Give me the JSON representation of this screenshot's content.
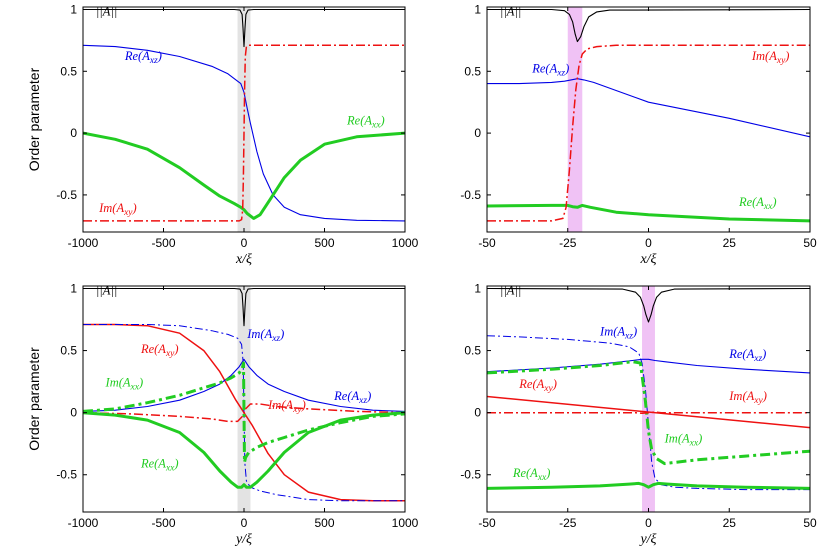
{
  "chart_data": [
    {
      "type": "line",
      "panel": "top-left",
      "ylabel": "Order parameter",
      "xlabel": "x/ξ",
      "xlim": [
        -1000,
        1000
      ],
      "ylim": [
        -0.8,
        1.02
      ],
      "xticks": [
        -1000,
        -500,
        0,
        500,
        1000
      ],
      "xtick_labels": [
        "-1000",
        "-500",
        "0",
        "500",
        "1000"
      ],
      "yticks": [
        1,
        0.5,
        0,
        -0.5
      ],
      "ytick_labels": [
        "1",
        "0.5",
        "0",
        "-0.5"
      ],
      "shade": {
        "from": -40,
        "to": 40,
        "color": "#e3e3e3"
      },
      "series": [
        {
          "name": "||A||",
          "color": "#000000",
          "width": 1.1,
          "dash": "",
          "x": [
            -1000,
            -60,
            -25,
            -12,
            -6,
            0,
            6,
            12,
            25,
            60,
            1000
          ],
          "y": [
            1,
            1,
            0.995,
            0.96,
            0.85,
            0.7,
            0.85,
            0.96,
            0.995,
            1,
            1
          ]
        },
        {
          "name": "Re(A_xz)",
          "color": "#0000e6",
          "width": 1.1,
          "dash": "",
          "x": [
            -1000,
            -800,
            -600,
            -400,
            -200,
            -100,
            -40,
            -20,
            0,
            20,
            40,
            80,
            120,
            180,
            250,
            350,
            500,
            700,
            1000
          ],
          "y": [
            0.71,
            0.7,
            0.67,
            0.62,
            0.54,
            0.48,
            0.42,
            0.4,
            0.33,
            0.2,
            0.08,
            -0.15,
            -0.33,
            -0.5,
            -0.6,
            -0.66,
            -0.69,
            -0.705,
            -0.71
          ]
        },
        {
          "name": "Re(A_xx)",
          "color": "#22cc22",
          "width": 3,
          "dash": "",
          "x": [
            -1000,
            -800,
            -600,
            -400,
            -250,
            -150,
            -60,
            -20,
            0,
            20,
            60,
            100,
            160,
            250,
            350,
            500,
            700,
            1000
          ],
          "y": [
            0,
            -0.05,
            -0.13,
            -0.28,
            -0.42,
            -0.51,
            -0.57,
            -0.6,
            -0.62,
            -0.65,
            -0.69,
            -0.66,
            -0.54,
            -0.36,
            -0.22,
            -0.09,
            -0.03,
            0
          ]
        },
        {
          "name": "Im(A_xy)",
          "color": "#ee1111",
          "width": 1.5,
          "dash": "9 3 2 3",
          "x": [
            -1000,
            -30,
            -15,
            -8,
            -4,
            0,
            4,
            8,
            15,
            30,
            1000
          ],
          "y": [
            -0.71,
            -0.71,
            -0.7,
            -0.62,
            -0.35,
            0,
            0.35,
            0.62,
            0.7,
            0.71,
            0.71
          ]
        }
      ],
      "annotations": [
        {
          "id": "norm",
          "text": "||A||",
          "color": "#000000"
        },
        {
          "id": "rexz",
          "text": "Re(A",
          "sub": "xz",
          "color": "#0000e6"
        },
        {
          "id": "rexx",
          "text": "Re(A",
          "sub": "xx",
          "color": "#22cc22"
        },
        {
          "id": "imxy",
          "text": "Im(A",
          "sub": "xy",
          "color": "#ee1111"
        }
      ]
    },
    {
      "type": "line",
      "panel": "top-right",
      "xlabel": "x/ξ",
      "xlim": [
        -50,
        50
      ],
      "ylim": [
        -0.8,
        1.02
      ],
      "xticks": [
        -50,
        -25,
        0,
        25,
        50
      ],
      "xtick_labels": [
        "-50",
        "-25",
        "0",
        "25",
        "50"
      ],
      "yticks": [
        1,
        0.5,
        0,
        -0.5
      ],
      "ytick_labels": [
        "1",
        "0.5",
        "0",
        "-0.5"
      ],
      "shade": {
        "from": -25,
        "to": -20.5,
        "color": "#f0c2f5"
      },
      "series": [
        {
          "name": "||A||",
          "color": "#000000",
          "width": 1.1,
          "dash": "",
          "x": [
            -50,
            -30,
            -26,
            -24.5,
            -23.5,
            -22.7,
            -22,
            -21,
            -20,
            -18.5,
            -16,
            -12,
            50
          ],
          "y": [
            1,
            1,
            0.99,
            0.96,
            0.9,
            0.8,
            0.74,
            0.78,
            0.86,
            0.94,
            0.98,
            0.995,
            1
          ]
        },
        {
          "name": "Re(A_xz)",
          "color": "#0000e6",
          "width": 1.1,
          "dash": "",
          "x": [
            -50,
            -40,
            -30,
            -26,
            -24,
            -22,
            -20,
            -17,
            0,
            25,
            50
          ],
          "y": [
            0.4,
            0.4,
            0.41,
            0.42,
            0.43,
            0.44,
            0.43,
            0.41,
            0.25,
            0.12,
            -0.03
          ]
        },
        {
          "name": "Re(A_xx)",
          "color": "#22cc22",
          "width": 3,
          "dash": "",
          "x": [
            -50,
            -30,
            -25,
            -23.5,
            -22,
            -20.5,
            -18,
            -10,
            0,
            25,
            50
          ],
          "y": [
            -0.59,
            -0.585,
            -0.585,
            -0.595,
            -0.6,
            -0.585,
            -0.6,
            -0.64,
            -0.66,
            -0.695,
            -0.71
          ]
        },
        {
          "name": "Im(A_xy)",
          "color": "#ee1111",
          "width": 1.5,
          "dash": "9 3 2 3",
          "x": [
            -50,
            -30,
            -26.5,
            -25.5,
            -24.5,
            -23.5,
            -22.5,
            -21.5,
            -20.5,
            -19,
            -16,
            -10,
            50
          ],
          "y": [
            -0.71,
            -0.71,
            -0.69,
            -0.6,
            -0.3,
            0.05,
            0.35,
            0.55,
            0.64,
            0.68,
            0.7,
            0.71,
            0.71
          ]
        }
      ],
      "annotations": [
        {
          "id": "norm",
          "text": "||A||",
          "color": "#000000"
        },
        {
          "id": "rexz",
          "text": "Re(A",
          "sub": "xz",
          "color": "#0000e6"
        },
        {
          "id": "imxy",
          "text": "Im(A",
          "sub": "xy",
          "color": "#ee1111"
        },
        {
          "id": "rexx",
          "text": "Re(A",
          "sub": "xx",
          "color": "#22cc22"
        }
      ]
    },
    {
      "type": "line",
      "panel": "bottom-left",
      "ylabel": "Order parameter",
      "xlabel": "y/ξ",
      "xlim": [
        -1000,
        1000
      ],
      "ylim": [
        -0.8,
        1.02
      ],
      "xticks": [
        -1000,
        -500,
        0,
        500,
        1000
      ],
      "xtick_labels": [
        "-1000",
        "-500",
        "0",
        "500",
        "1000"
      ],
      "yticks": [
        1,
        0.5,
        0,
        -0.5
      ],
      "ytick_labels": [
        "1",
        "0.5",
        "0",
        "-0.5"
      ],
      "shade": {
        "from": -40,
        "to": 40,
        "color": "#e3e3e3"
      },
      "series": [
        {
          "name": "||A||",
          "color": "#000000",
          "width": 1.1,
          "dash": "",
          "x": [
            -1000,
            -60,
            -25,
            -12,
            -6,
            0,
            6,
            12,
            25,
            60,
            1000
          ],
          "y": [
            1,
            1,
            0.995,
            0.96,
            0.85,
            0.7,
            0.85,
            0.96,
            0.995,
            1,
            1
          ]
        },
        {
          "name": "Re(A_xy)",
          "color": "#ee1111",
          "width": 1.5,
          "dash": "",
          "x": [
            -1000,
            -800,
            -600,
            -400,
            -250,
            -150,
            -50,
            0,
            50,
            150,
            250,
            400,
            600,
            800,
            1000
          ],
          "y": [
            0.71,
            0.71,
            0.7,
            0.64,
            0.5,
            0.33,
            0.1,
            0,
            -0.1,
            -0.33,
            -0.5,
            -0.64,
            -0.7,
            -0.71,
            -0.71
          ]
        },
        {
          "name": "Im(A_xz)",
          "color": "#0000e6",
          "width": 1.0,
          "dash": "8 3 2 3",
          "x": [
            -1000,
            -600,
            -400,
            -300,
            -200,
            -100,
            -40,
            -15,
            -5,
            0,
            5,
            15,
            40,
            100,
            200,
            300,
            400,
            600,
            1000
          ],
          "y": [
            0.71,
            0.71,
            0.7,
            0.68,
            0.66,
            0.63,
            0.6,
            0.55,
            0.4,
            0,
            -0.4,
            -0.55,
            -0.6,
            -0.63,
            -0.66,
            -0.68,
            -0.7,
            -0.71,
            -0.71
          ]
        },
        {
          "name": "Re(A_xz)",
          "color": "#0000e6",
          "width": 1.1,
          "dash": "",
          "x": [
            -1000,
            -800,
            -600,
            -400,
            -250,
            -150,
            -80,
            -30,
            0,
            30,
            80,
            150,
            250,
            400,
            600,
            800,
            1000
          ],
          "y": [
            0.01,
            0.02,
            0.05,
            0.1,
            0.17,
            0.23,
            0.3,
            0.37,
            0.43,
            0.37,
            0.3,
            0.23,
            0.17,
            0.1,
            0.05,
            0.02,
            0.01
          ]
        },
        {
          "name": "Im(A_xx)",
          "color": "#22cc22",
          "width": 3,
          "dash": "10 4 3 4",
          "x": [
            -1000,
            -800,
            -600,
            -400,
            -250,
            -150,
            -80,
            -30,
            -10,
            -3,
            3,
            10,
            30,
            80,
            150,
            250,
            400,
            600,
            800,
            1000
          ],
          "y": [
            0.01,
            0.03,
            0.08,
            0.14,
            0.2,
            0.24,
            0.28,
            0.32,
            0.36,
            0.4,
            -0.4,
            -0.36,
            -0.32,
            -0.28,
            -0.24,
            -0.2,
            -0.14,
            -0.08,
            -0.03,
            -0.01
          ]
        },
        {
          "name": "Im(A_xy)",
          "color": "#ee1111",
          "width": 1.5,
          "dash": "9 3 2 3",
          "x": [
            -1000,
            -700,
            -400,
            -200,
            -100,
            -40,
            -10,
            0,
            10,
            40,
            100,
            200,
            400,
            700,
            1000
          ],
          "y": [
            0,
            -0.01,
            -0.03,
            -0.05,
            -0.07,
            -0.07,
            -0.03,
            0,
            0.03,
            0.07,
            0.07,
            0.05,
            0.03,
            0.01,
            0
          ]
        },
        {
          "name": "Re(A_xx)",
          "color": "#22cc22",
          "width": 3,
          "dash": "",
          "x": [
            -1000,
            -800,
            -600,
            -400,
            -250,
            -150,
            -80,
            -40,
            -15,
            0,
            15,
            40,
            80,
            150,
            250,
            400,
            600,
            800,
            1000
          ],
          "y": [
            0,
            -0.02,
            -0.06,
            -0.16,
            -0.32,
            -0.47,
            -0.56,
            -0.6,
            -0.6,
            -0.58,
            -0.6,
            -0.6,
            -0.56,
            -0.47,
            -0.32,
            -0.16,
            -0.06,
            -0.02,
            0
          ]
        }
      ],
      "annotations": [
        {
          "id": "norm",
          "text": "||A||",
          "color": "#000000"
        },
        {
          "id": "imxz",
          "text": "Im(A",
          "sub": "xz",
          "color": "#0000e6"
        },
        {
          "id": "rexy",
          "text": "Re(A",
          "sub": "xy",
          "color": "#ee1111"
        },
        {
          "id": "imxx",
          "text": "Im(A",
          "sub": "xx",
          "color": "#22cc22"
        },
        {
          "id": "rexz",
          "text": "Re(A",
          "sub": "xz",
          "color": "#0000e6"
        },
        {
          "id": "imxy",
          "text": "Im(A",
          "sub": "xy",
          "color": "#ee1111"
        },
        {
          "id": "rexx",
          "text": "Re(A",
          "sub": "xx",
          "color": "#22cc22"
        }
      ]
    },
    {
      "type": "line",
      "panel": "bottom-right",
      "xlabel": "y/ξ",
      "xlim": [
        -50,
        50
      ],
      "ylim": [
        -0.8,
        1.02
      ],
      "xticks": [
        -50,
        -25,
        0,
        25,
        50
      ],
      "xtick_labels": [
        "-50",
        "-25",
        "0",
        "25",
        "50"
      ],
      "yticks": [
        1,
        0.5,
        0,
        -0.5
      ],
      "ytick_labels": [
        "1",
        "0.5",
        "0",
        "-0.5"
      ],
      "shade": {
        "from": -2,
        "to": 2,
        "color": "#f0c2f5"
      },
      "series": [
        {
          "name": "||A||",
          "color": "#000000",
          "width": 1.1,
          "dash": "",
          "x": [
            -50,
            -8,
            -4,
            -2.5,
            -1.5,
            -0.8,
            0,
            0.8,
            1.5,
            2.5,
            4,
            8,
            50
          ],
          "y": [
            1,
            0.995,
            0.97,
            0.93,
            0.86,
            0.79,
            0.73,
            0.79,
            0.86,
            0.93,
            0.97,
            0.995,
            1
          ]
        },
        {
          "name": "Im(A_xz)",
          "color": "#0000e6",
          "width": 1.0,
          "dash": "8 3 2 3",
          "x": [
            -50,
            -40,
            -25,
            -12,
            -6,
            -3,
            -2,
            -1,
            0,
            1,
            2,
            4,
            8,
            15,
            30,
            50
          ],
          "y": [
            0.62,
            0.61,
            0.59,
            0.56,
            0.53,
            0.48,
            0.4,
            0.2,
            -0.1,
            -0.4,
            -0.53,
            -0.58,
            -0.6,
            -0.61,
            -0.62,
            -0.62
          ]
        },
        {
          "name": "Re(A_xz)",
          "color": "#0000e6",
          "width": 1.1,
          "dash": "",
          "x": [
            -50,
            -30,
            -15,
            -5,
            -2,
            0,
            2,
            5,
            15,
            30,
            50
          ],
          "y": [
            0.33,
            0.36,
            0.39,
            0.42,
            0.43,
            0.43,
            0.42,
            0.41,
            0.38,
            0.35,
            0.32
          ]
        },
        {
          "name": "Im(A_xx)",
          "color": "#22cc22",
          "width": 3,
          "dash": "10 4 3 4",
          "x": [
            -50,
            -30,
            -15,
            -5,
            -2.5,
            -1,
            0,
            1,
            2.5,
            5,
            15,
            30,
            50
          ],
          "y": [
            0.32,
            0.35,
            0.38,
            0.41,
            0.4,
            0.1,
            -0.15,
            -0.3,
            -0.37,
            -0.41,
            -0.38,
            -0.35,
            -0.31
          ]
        },
        {
          "name": "Re(A_xy)",
          "color": "#ee1111",
          "width": 1.5,
          "dash": "",
          "x": [
            -50,
            50
          ],
          "y": [
            0.13,
            -0.12
          ]
        },
        {
          "name": "Im(A_xy)",
          "color": "#ee1111",
          "width": 1.5,
          "dash": "9 3 2 3",
          "x": [
            -50,
            -4,
            -2,
            0,
            2,
            4,
            50
          ],
          "y": [
            0,
            0,
            -0.005,
            0,
            0.005,
            0,
            0
          ]
        },
        {
          "name": "Re(A_xx)",
          "color": "#22cc22",
          "width": 3,
          "dash": "",
          "x": [
            -50,
            -30,
            -15,
            -6,
            -3,
            -1.5,
            0,
            1.5,
            3,
            6,
            15,
            30,
            50
          ],
          "y": [
            -0.61,
            -0.6,
            -0.59,
            -0.575,
            -0.57,
            -0.58,
            -0.6,
            -0.58,
            -0.57,
            -0.575,
            -0.59,
            -0.6,
            -0.61
          ]
        }
      ],
      "annotations": [
        {
          "id": "norm",
          "text": "||A||",
          "color": "#000000"
        },
        {
          "id": "imxz",
          "text": "Im(A",
          "sub": "xz",
          "color": "#0000e6"
        },
        {
          "id": "rexz",
          "text": "Re(A",
          "sub": "xz",
          "color": "#0000e6"
        },
        {
          "id": "rexy",
          "text": "Re(A",
          "sub": "xy",
          "color": "#ee1111"
        },
        {
          "id": "imxy",
          "text": "Im(A",
          "sub": "xy",
          "color": "#ee1111"
        },
        {
          "id": "imxx",
          "text": "Im(A",
          "sub": "xx",
          "color": "#22cc22"
        },
        {
          "id": "rexx",
          "text": "Re(A",
          "sub": "xx",
          "color": "#22cc22"
        }
      ]
    }
  ]
}
